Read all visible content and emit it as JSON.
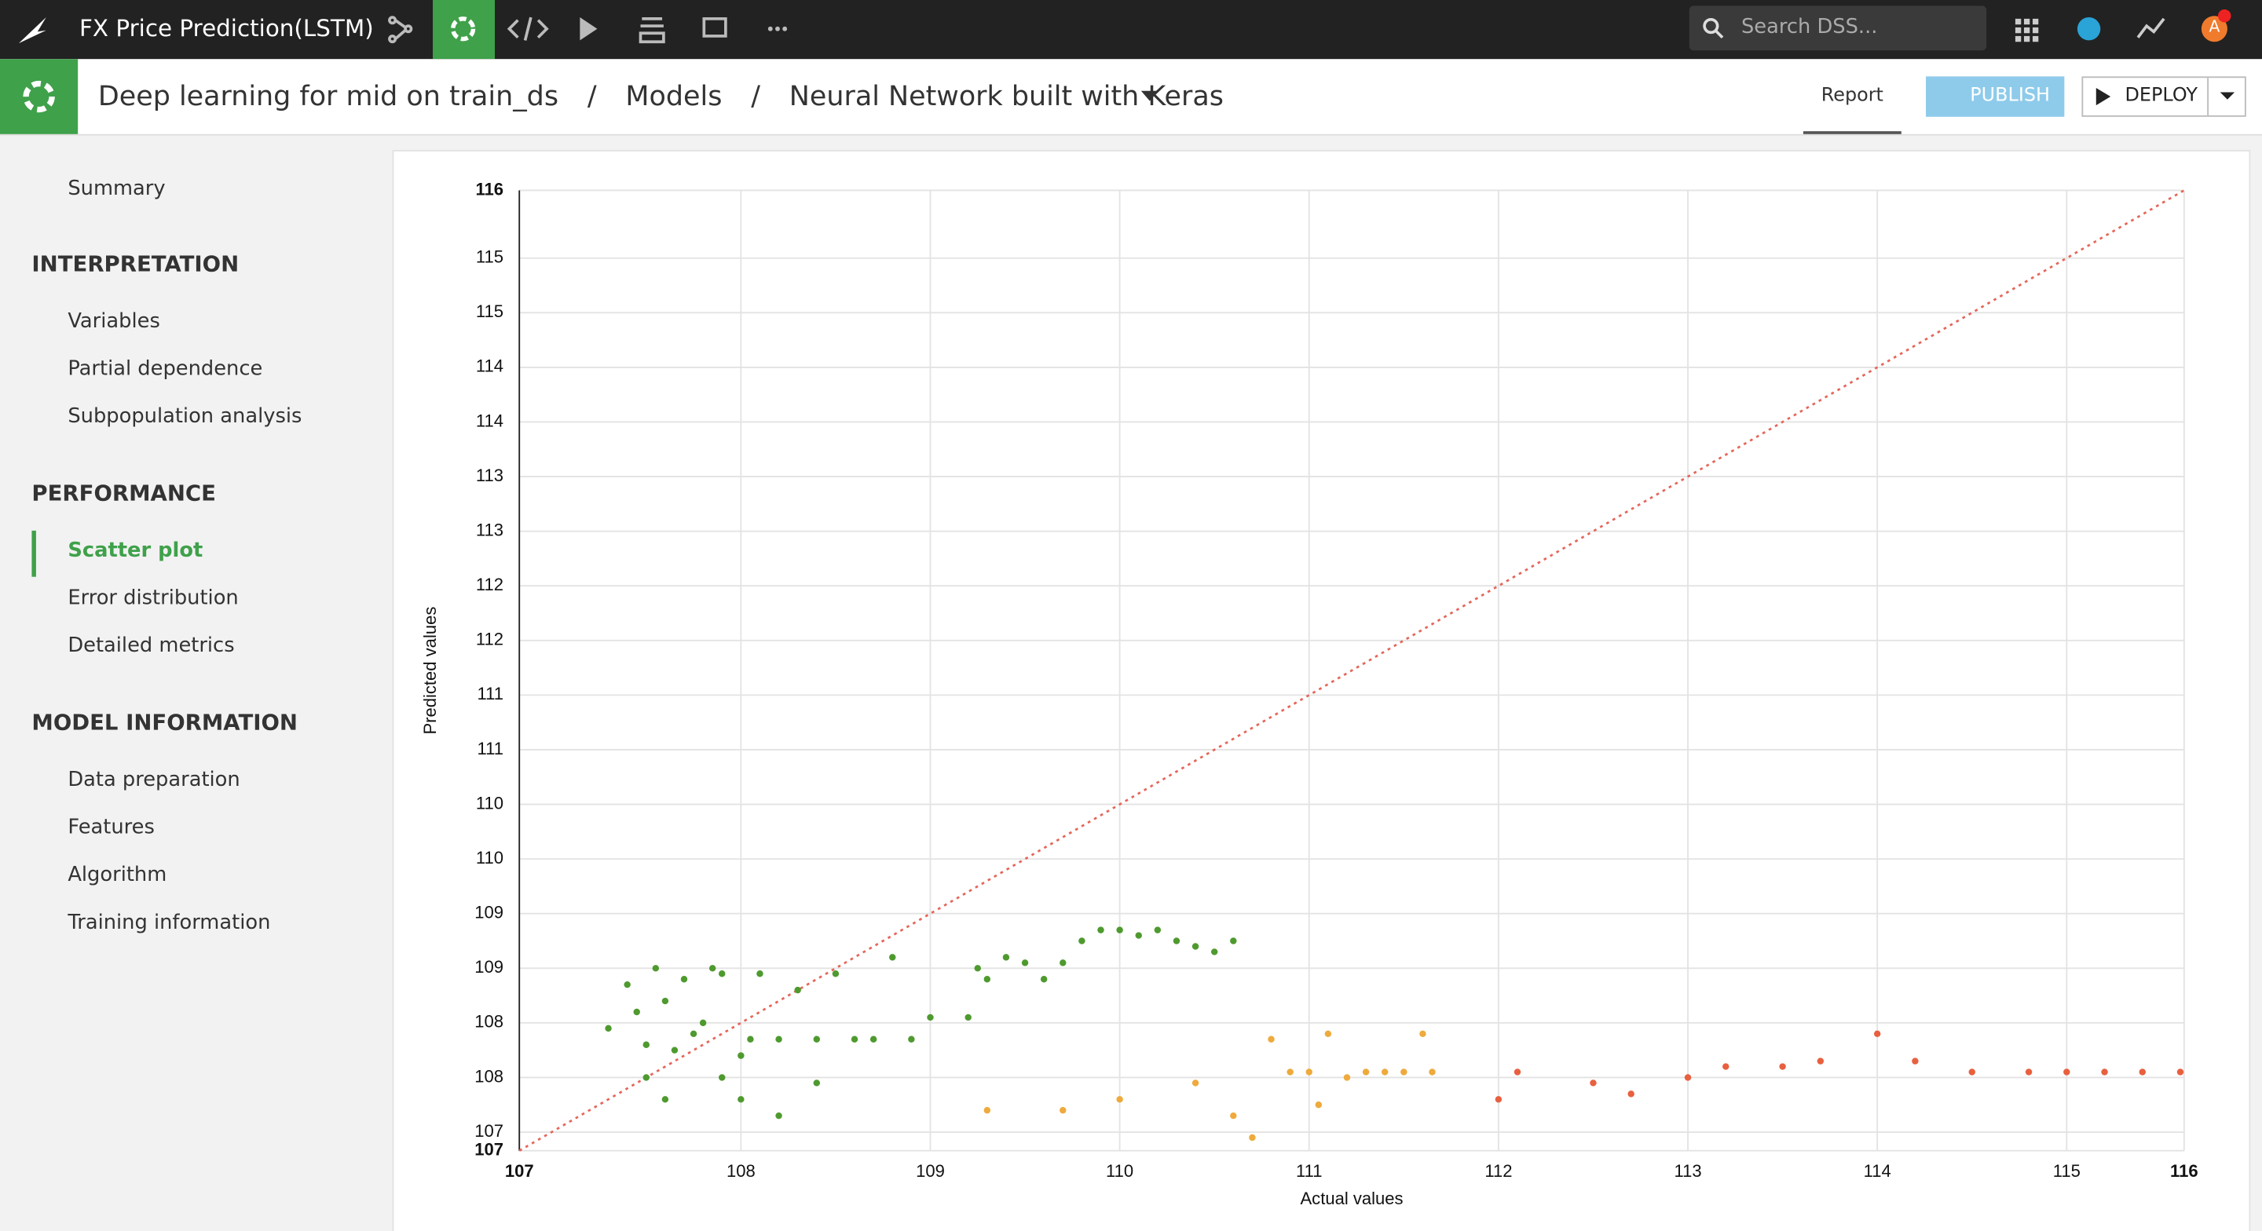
{
  "topbar": {
    "project": "FX Price Prediction(LSTM)",
    "search_placeholder": "Search DSS...",
    "user_initial": "A"
  },
  "breadcrumb": {
    "items": [
      "Deep learning for mid on train_ds",
      "Models",
      "Neural Network built with Keras"
    ],
    "separator": "/"
  },
  "actions": {
    "report": "Report",
    "publish": "PUBLISH",
    "deploy": "DEPLOY"
  },
  "sidebar": {
    "summary": "Summary",
    "sections": [
      {
        "title": "INTERPRETATION",
        "items": [
          "Variables",
          "Partial dependence",
          "Subpopulation analysis"
        ]
      },
      {
        "title": "PERFORMANCE",
        "items": [
          "Scatter plot",
          "Error distribution",
          "Detailed metrics"
        ]
      },
      {
        "title": "MODEL INFORMATION",
        "items": [
          "Data preparation",
          "Features",
          "Algorithm",
          "Training information"
        ]
      }
    ],
    "active": "Scatter plot"
  },
  "chart_data": {
    "type": "scatter",
    "x_label": "Actual values",
    "y_label": "Predicted values",
    "xlim": [
      106.83,
      115.62
    ],
    "ylim": [
      106.83,
      115.62
    ],
    "xticks": [
      {
        "value": 106.83,
        "label": "107"
      },
      108,
      109,
      110,
      111,
      112,
      113,
      114,
      115,
      {
        "value": 115.62,
        "label": "116"
      }
    ],
    "yticks": [
      {
        "value": 106.83,
        "label": "107"
      },
      107,
      {
        "value": 107.5,
        "label": "108"
      },
      108,
      {
        "value": 108.5,
        "label": "109"
      },
      109,
      {
        "value": 109.5,
        "label": "110"
      },
      110,
      {
        "value": 110.5,
        "label": "111"
      },
      111,
      {
        "value": 111.5,
        "label": "112"
      },
      112,
      {
        "value": 112.5,
        "label": "113"
      },
      113,
      {
        "value": 113.5,
        "label": "114"
      },
      114,
      {
        "value": 114.5,
        "label": "115"
      },
      115,
      {
        "value": 115.62,
        "label": "116"
      }
    ],
    "grid": true,
    "identity_line_color": "#e5665a",
    "series": [
      {
        "color": "#4e9a2f",
        "x": [
          107.3,
          107.4,
          107.45,
          107.5,
          107.55,
          107.6,
          107.65,
          107.7,
          107.75,
          107.8,
          107.5,
          107.6,
          107.85,
          107.9,
          108.0,
          108.05,
          108.1,
          108.2,
          108.3,
          108.4,
          108.5,
          108.6,
          108.7,
          108.8,
          108.9,
          109.0,
          109.2,
          109.25,
          109.3,
          109.4,
          109.5,
          109.6,
          109.7,
          109.8,
          109.9,
          110.0,
          110.1,
          110.2,
          110.3,
          110.4,
          110.5,
          110.6,
          108.0,
          108.2,
          107.9,
          108.4
        ],
        "values": [
          107.95,
          108.35,
          108.1,
          107.8,
          108.5,
          108.2,
          107.75,
          108.4,
          107.9,
          108.0,
          107.5,
          107.3,
          108.5,
          108.45,
          107.7,
          107.85,
          108.45,
          107.85,
          108.3,
          107.85,
          108.45,
          107.85,
          107.85,
          108.6,
          107.85,
          108.05,
          108.05,
          108.5,
          108.4,
          108.6,
          108.55,
          108.4,
          108.55,
          108.75,
          108.85,
          108.85,
          108.8,
          108.85,
          108.75,
          108.7,
          108.65,
          108.75,
          107.3,
          107.15,
          107.5,
          107.45
        ]
      },
      {
        "color": "#eeaa3c",
        "x": [
          109.3,
          109.7,
          110.0,
          110.4,
          110.6,
          110.8,
          110.9,
          111.0,
          111.1,
          111.2,
          111.3,
          111.4,
          111.5,
          111.6,
          111.65,
          110.7,
          111.05
        ],
        "values": [
          107.2,
          107.2,
          107.3,
          107.45,
          107.15,
          107.85,
          107.55,
          107.55,
          107.9,
          107.5,
          107.55,
          107.55,
          107.55,
          107.9,
          107.55,
          106.95,
          107.25
        ]
      },
      {
        "color": "#e8603f",
        "x": [
          112.0,
          112.1,
          112.5,
          112.7,
          113.0,
          113.2,
          113.5,
          113.7,
          114.0,
          114.2,
          114.5,
          114.8,
          115.0,
          115.2,
          115.4,
          115.6
        ],
        "values": [
          107.3,
          107.55,
          107.45,
          107.35,
          107.5,
          107.6,
          107.6,
          107.65,
          107.9,
          107.65,
          107.55,
          107.55,
          107.55,
          107.55,
          107.55,
          107.55
        ]
      }
    ]
  }
}
